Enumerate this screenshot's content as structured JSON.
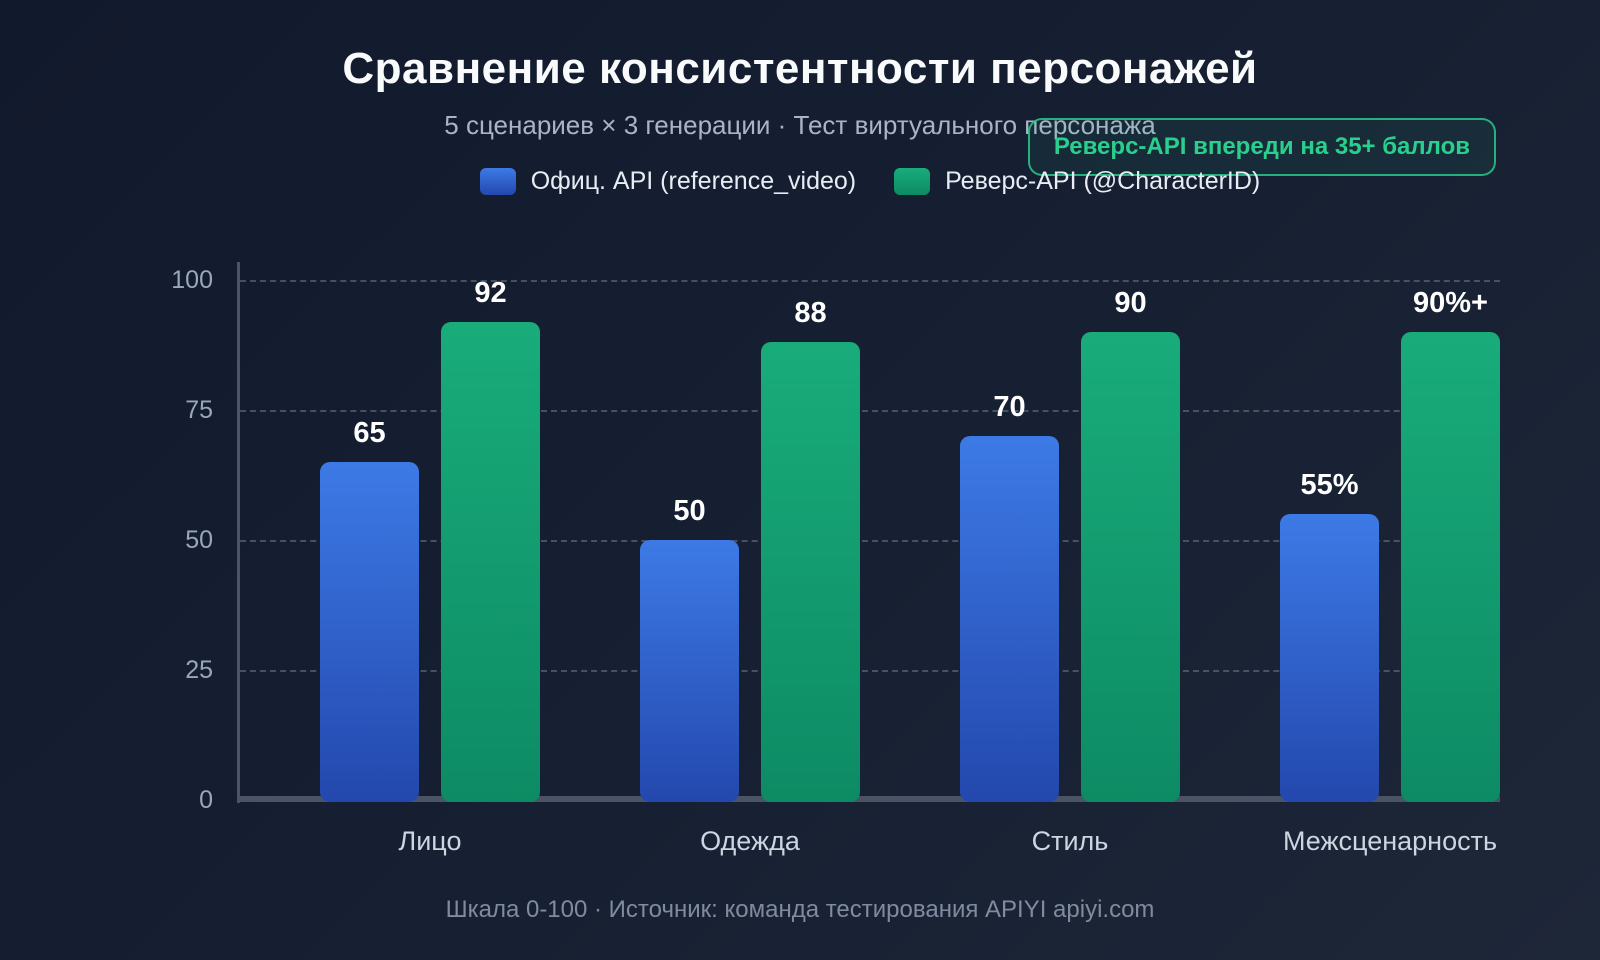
{
  "title": "Сравнение консистентности персонажей",
  "subtitle": "5 сценариев × 3 генерации · Тест виртуального персонажа",
  "badge": {
    "label": "Реверс-API впереди на 35+ баллов",
    "text_color": "#29d08d",
    "border_color": "#28c88a"
  },
  "footer": "Шкала 0-100 · Источник: команда тестирования APIYI apiyi.com",
  "colors": {
    "background_start": "#111a2c",
    "background_end": "#1e2738",
    "axis": "#4a5464",
    "gridline": "#94a3b8",
    "value_label": "#ffffff"
  },
  "chart_data": {
    "type": "bar",
    "categories": [
      "Лицо",
      "Одежда",
      "Стиль",
      "Межсценарность"
    ],
    "series": [
      {
        "name": "Офиц. API (reference_video)",
        "values": [
          65,
          50,
          70,
          55
        ],
        "labels": [
          "65",
          "50",
          "70",
          "55%"
        ],
        "color_top": "#3d7ae6",
        "color_bottom": "#2348ad"
      },
      {
        "name": "Реверс-API (@CharacterID)",
        "values": [
          92,
          88,
          90,
          90
        ],
        "labels": [
          "92",
          "88",
          "90",
          "90%+"
        ],
        "color_top": "#19ac7a",
        "color_bottom": "#0d8b64"
      }
    ],
    "title": "Сравнение консистентности персонажей",
    "xlabel": "",
    "ylabel": "",
    "ylim": [
      0,
      100
    ],
    "yticks": [
      0,
      25,
      50,
      75,
      100
    ],
    "grid": "dashed-horizontal",
    "legend_position": "top"
  }
}
